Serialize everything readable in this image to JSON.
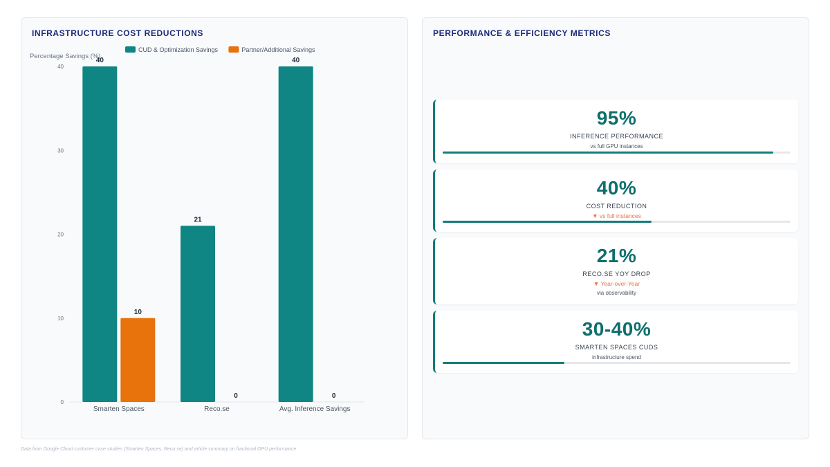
{
  "left_panel": {
    "title": "INFRASTRUCTURE COST REDUCTIONS"
  },
  "right_panel": {
    "title": "PERFORMANCE & EFFICIENCY METRICS"
  },
  "chart_data": {
    "type": "bar",
    "title": "",
    "ylabel": "Percentage Savings (%)",
    "xlabel": "",
    "categories": [
      "Smarten Spaces",
      "Reco.se",
      "Avg. Inference Savings"
    ],
    "series": [
      {
        "name": "CUD & Optimization Savings",
        "color": "#0f8584",
        "values": [
          40,
          21,
          40
        ]
      },
      {
        "name": "Partner/Additional Savings",
        "color": "#e8720c",
        "values": [
          10,
          0,
          0
        ]
      }
    ],
    "ylim": [
      0,
      40
    ],
    "yticks": [
      0,
      10,
      20,
      30,
      40
    ],
    "legend_position": "top",
    "grid": false,
    "data_labels": true
  },
  "metrics": [
    {
      "value": "95%",
      "label": "INFERENCE PERFORMANCE",
      "sub": "vs full GPU instances",
      "delta": "",
      "progress": 0.95
    },
    {
      "value": "40%",
      "label": "COST REDUCTION",
      "sub": "",
      "delta": "▼ vs full instances",
      "progress": 0.6
    },
    {
      "value": "21%",
      "label": "RECO.SE YOY DROP",
      "sub": "via observability",
      "delta": "▼ Year-over-Year",
      "progress": null
    },
    {
      "value": "30-40%",
      "label": "SMARTEN SPACES CUDS",
      "sub": "infrastructure spend",
      "delta": "",
      "progress": 0.35
    }
  ],
  "footnote": "Data from Google Cloud customer case studies (Smarten Spaces, Reco.se) and article summary on fractional GPU performance."
}
